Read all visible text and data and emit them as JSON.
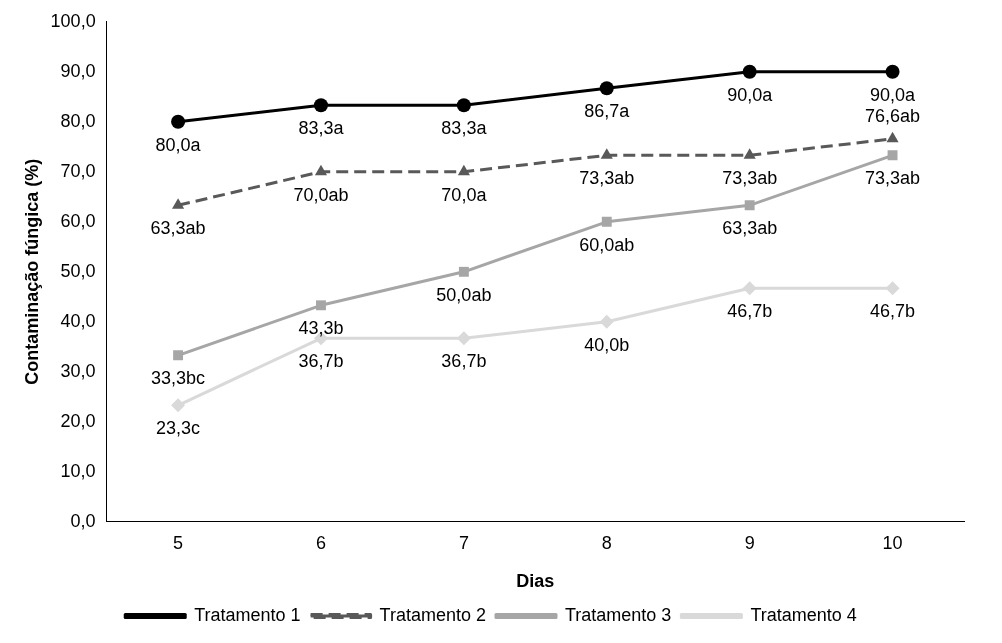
{
  "chart_data": {
    "type": "line",
    "xlabel": "Dias",
    "ylabel": "Contaminação fúngica (%)",
    "categories": [
      "5",
      "6",
      "7",
      "8",
      "9",
      "10"
    ],
    "ylim": [
      0,
      100
    ],
    "yticks": [
      {
        "value": 0,
        "label": "0,0"
      },
      {
        "value": 10,
        "label": "10,0"
      },
      {
        "value": 20,
        "label": "20,0"
      },
      {
        "value": 30,
        "label": "30,0"
      },
      {
        "value": 40,
        "label": "40,0"
      },
      {
        "value": 50,
        "label": "50,0"
      },
      {
        "value": 60,
        "label": "60,0"
      },
      {
        "value": 70,
        "label": "70,0"
      },
      {
        "value": 80,
        "label": "80,0"
      },
      {
        "value": 90,
        "label": "90,0"
      },
      {
        "value": 100,
        "label": "100,0"
      }
    ],
    "grid": false,
    "legend": "bottom",
    "series": [
      {
        "name": "Tratamento 1",
        "color": "#000000",
        "marker": "circle",
        "line_style": "solid",
        "values": [
          80.0,
          83.3,
          83.3,
          86.7,
          90.0,
          90.0
        ],
        "value_labels": [
          "80,0a",
          "83,3a",
          "83,3a",
          "86,7a",
          "90,0a",
          "90,0a"
        ]
      },
      {
        "name": "Tratamento 2",
        "color": "#595959",
        "marker": "triangle",
        "line_style": "dashed",
        "values": [
          63.3,
          70.0,
          70.0,
          73.3,
          73.3,
          76.6
        ],
        "value_labels": [
          "63,3ab",
          "70,0ab",
          "70,0a",
          "73,3ab",
          "73,3ab",
          "76,6ab"
        ]
      },
      {
        "name": "Tratamento 3",
        "color": "#a6a6a6",
        "marker": "square",
        "line_style": "solid",
        "values": [
          33.3,
          43.3,
          50.0,
          60.0,
          63.3,
          73.3
        ],
        "value_labels": [
          "33,3bc",
          "43,3b",
          "50,0ab",
          "60,0ab",
          "63,3ab",
          "73,3ab"
        ]
      },
      {
        "name": "Tratamento 4",
        "color": "#d9d9d9",
        "marker": "diamond",
        "line_style": "solid",
        "values": [
          23.3,
          36.7,
          36.7,
          40.0,
          46.7,
          46.7
        ],
        "value_labels": [
          "23,3c",
          "36,7b",
          "36,7b",
          "40,0b",
          "46,7b",
          "46,7b"
        ]
      }
    ]
  }
}
